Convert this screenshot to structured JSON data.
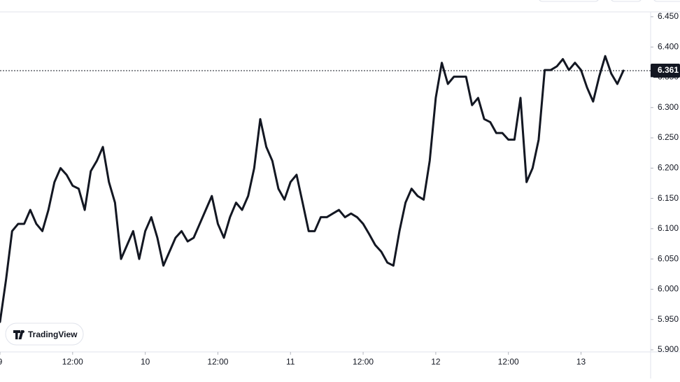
{
  "chart_data": {
    "type": "line",
    "color": "#131722",
    "x": [
      0,
      1,
      2,
      3,
      4,
      5,
      6,
      7,
      8,
      9,
      10,
      11,
      12,
      13,
      14,
      15,
      16,
      17,
      18,
      19,
      20,
      21,
      22,
      23,
      24,
      25,
      26,
      27,
      28,
      29,
      30,
      31,
      32,
      33,
      34,
      35,
      36,
      37,
      38,
      39,
      40,
      41,
      42,
      43,
      44,
      45,
      46,
      47,
      48,
      49,
      50,
      51,
      52,
      53,
      54,
      55,
      56,
      57,
      58,
      59,
      60,
      61,
      62,
      63,
      64,
      65,
      66,
      67,
      68,
      69,
      70,
      71,
      72,
      73,
      74,
      75,
      76,
      77,
      78,
      79,
      80,
      81,
      82,
      83,
      84,
      85,
      86,
      87,
      88,
      89,
      90,
      91,
      92,
      93,
      94,
      95,
      96,
      97,
      98,
      99,
      100,
      101,
      102,
      103
    ],
    "values": [
      5.946,
      6.016,
      6.096,
      6.108,
      6.108,
      6.131,
      6.108,
      6.096,
      6.131,
      6.177,
      6.2,
      6.189,
      6.171,
      6.166,
      6.131,
      6.195,
      6.212,
      6.235,
      6.177,
      6.143,
      6.05,
      6.073,
      6.096,
      6.05,
      6.096,
      6.119,
      6.085,
      6.039,
      6.062,
      6.085,
      6.096,
      6.079,
      6.085,
      6.108,
      6.131,
      6.154,
      6.108,
      6.085,
      6.119,
      6.143,
      6.131,
      6.154,
      6.2,
      6.281,
      6.235,
      6.212,
      6.166,
      6.148,
      6.177,
      6.189,
      6.143,
      6.096,
      6.096,
      6.119,
      6.119,
      6.125,
      6.131,
      6.119,
      6.125,
      6.119,
      6.108,
      6.091,
      6.073,
      6.062,
      6.044,
      6.039,
      6.096,
      6.143,
      6.166,
      6.154,
      6.148,
      6.212,
      6.316,
      6.374,
      6.339,
      6.351,
      6.351,
      6.351,
      6.304,
      6.316,
      6.281,
      6.276,
      6.258,
      6.258,
      6.247,
      6.247,
      6.316,
      6.177,
      6.2,
      6.247,
      6.362,
      6.362,
      6.368,
      6.38,
      6.362,
      6.374,
      6.362,
      6.333,
      6.31,
      6.351,
      6.385,
      6.356,
      6.339,
      6.361
    ],
    "xlim": [
      0,
      107.5
    ],
    "xticks": [
      {
        "value": 0,
        "label": "9"
      },
      {
        "value": 12,
        "label": "12:00"
      },
      {
        "value": 24,
        "label": "10"
      },
      {
        "value": 36,
        "label": "12:00"
      },
      {
        "value": 48,
        "label": "11"
      },
      {
        "value": 60,
        "label": "12:00"
      },
      {
        "value": 72,
        "label": "12"
      },
      {
        "value": 84,
        "label": "12:00"
      },
      {
        "value": 96,
        "label": "13"
      }
    ],
    "ylim": [
      5.8965,
      6.458
    ],
    "yticks": [
      {
        "value": 5.9,
        "label": "5.900"
      },
      {
        "value": 5.95,
        "label": "5.950"
      },
      {
        "value": 6.0,
        "label": "6.000"
      },
      {
        "value": 6.05,
        "label": "6.050"
      },
      {
        "value": 6.1,
        "label": "6.100"
      },
      {
        "value": 6.15,
        "label": "6.150"
      },
      {
        "value": 6.2,
        "label": "6.200"
      },
      {
        "value": 6.25,
        "label": "6.250"
      },
      {
        "value": 6.3,
        "label": "6.300"
      },
      {
        "value": 6.35,
        "label": "6.350"
      },
      {
        "value": 6.4,
        "label": "6.400"
      },
      {
        "value": 6.45,
        "label": "6.450"
      }
    ],
    "last_price": 6.361,
    "watermark": "TradingView"
  }
}
